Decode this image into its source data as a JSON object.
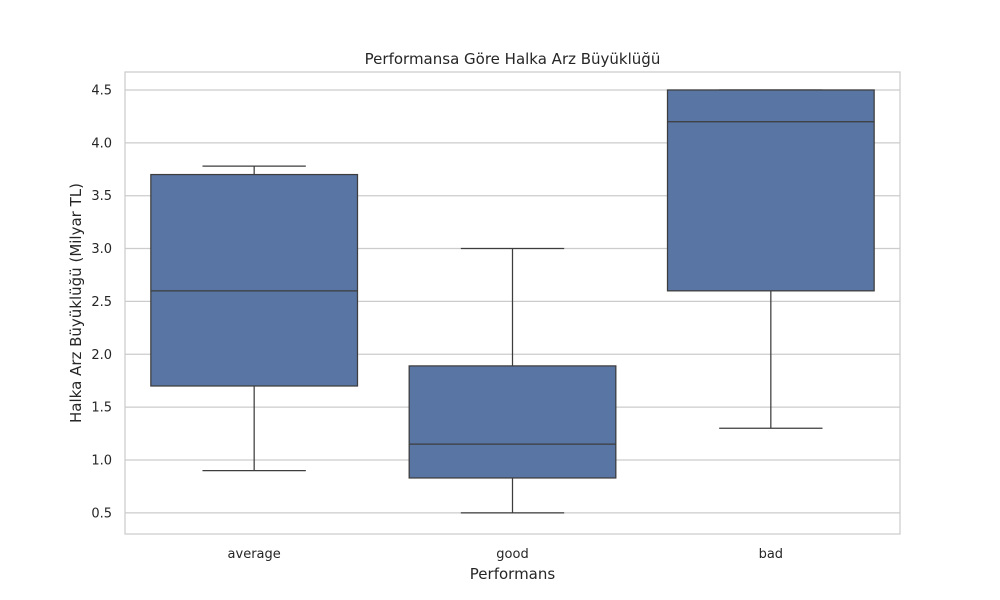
{
  "chart_data": {
    "type": "box",
    "title": "Performansa Göre Halka Arz Büyüklüğü",
    "xlabel": "Performans",
    "ylabel": "Halka Arz Büyüklüğü (Milyar TL)",
    "categories": [
      "average",
      "good",
      "bad"
    ],
    "ylim": [
      0.3,
      4.67
    ],
    "yticks": [
      0.5,
      1.0,
      1.5,
      2.0,
      2.5,
      3.0,
      3.5,
      4.0,
      4.5
    ],
    "ytick_labels": [
      "0.5",
      "1.0",
      "1.5",
      "2.0",
      "2.5",
      "3.0",
      "3.5",
      "4.0",
      "4.5"
    ],
    "grid": true,
    "boxes": [
      {
        "category": "average",
        "whisker_low": 0.9,
        "q1": 1.7,
        "median": 2.6,
        "q3": 3.7,
        "whisker_high": 3.78
      },
      {
        "category": "good",
        "whisker_low": 0.5,
        "q1": 0.83,
        "median": 1.15,
        "q3": 1.89,
        "whisker_high": 3.0
      },
      {
        "category": "bad",
        "whisker_low": 1.3,
        "q1": 2.6,
        "median": 4.2,
        "q3": 4.5,
        "whisker_high": 4.5
      }
    ],
    "colors": {
      "box_fill": "#5875a4",
      "line": "#3d3d3d",
      "grid": "#cccccc",
      "frame": "#cccccc"
    }
  }
}
